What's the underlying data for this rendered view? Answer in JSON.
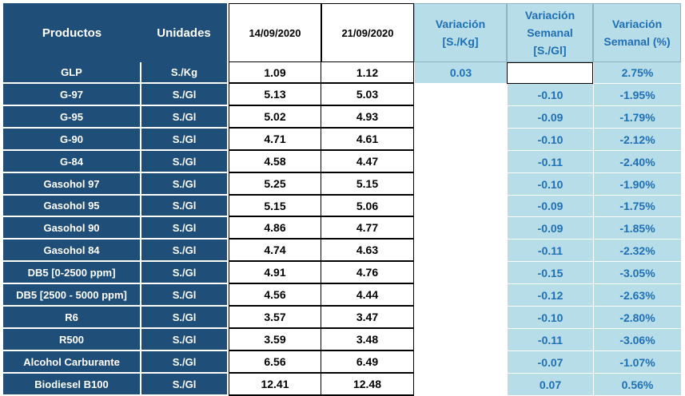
{
  "headers": {
    "productos": "Productos",
    "unidades": "Unidades",
    "date1": "14/09/2020",
    "date2": "21/09/2020",
    "var_kg": "Variación [S./Kg]",
    "var_sem_gl": "Variación Semanal [S./Gl]",
    "var_sem_pct": "Variación Semanal (%)"
  },
  "glp": {
    "product": "GLP",
    "unit": "S./Kg",
    "p1": "1.09",
    "p2": "1.12",
    "var_kg": "0.03",
    "var_pct": "2.75%"
  },
  "rows": [
    {
      "product": "G-97",
      "unit": "S./Gl",
      "p1": "5.13",
      "p2": "5.03",
      "var_gl": "-0.10",
      "var_pct": "-1.95%"
    },
    {
      "product": "G-95",
      "unit": "S./Gl",
      "p1": "5.02",
      "p2": "4.93",
      "var_gl": "-0.09",
      "var_pct": "-1.79%"
    },
    {
      "product": "G-90",
      "unit": "S./Gl",
      "p1": "4.71",
      "p2": "4.61",
      "var_gl": "-0.10",
      "var_pct": "-2.12%"
    },
    {
      "product": "G-84",
      "unit": "S./Gl",
      "p1": "4.58",
      "p2": "4.47",
      "var_gl": "-0.11",
      "var_pct": "-2.40%"
    },
    {
      "product": "Gasohol 97",
      "unit": "S./Gl",
      "p1": "5.25",
      "p2": "5.15",
      "var_gl": "-0.10",
      "var_pct": "-1.90%"
    },
    {
      "product": "Gasohol 95",
      "unit": "S./Gl",
      "p1": "5.15",
      "p2": "5.06",
      "var_gl": "-0.09",
      "var_pct": "-1.75%"
    },
    {
      "product": "Gasohol 90",
      "unit": "S./Gl",
      "p1": "4.86",
      "p2": "4.77",
      "var_gl": "-0.09",
      "var_pct": "-1.85%"
    },
    {
      "product": "Gasohol 84",
      "unit": "S./Gl",
      "p1": "4.74",
      "p2": "4.63",
      "var_gl": "-0.11",
      "var_pct": "-2.32%"
    },
    {
      "product": "DB5 [0-2500 ppm]",
      "unit": "S./Gl",
      "p1": "4.91",
      "p2": "4.76",
      "var_gl": "-0.15",
      "var_pct": "-3.05%"
    },
    {
      "product": "DB5 [2500 - 5000 ppm]",
      "unit": "S./Gl",
      "p1": "4.56",
      "p2": "4.44",
      "var_gl": "-0.12",
      "var_pct": "-2.63%"
    },
    {
      "product": "R6",
      "unit": "S./Gl",
      "p1": "3.57",
      "p2": "3.47",
      "var_gl": "-0.10",
      "var_pct": "-2.80%"
    },
    {
      "product": "R500",
      "unit": "S./Gl",
      "p1": "3.59",
      "p2": "3.48",
      "var_gl": "-0.11",
      "var_pct": "-3.06%"
    },
    {
      "product": "Alcohol Carburante",
      "unit": "S./Gl",
      "p1": "6.56",
      "p2": "6.49",
      "var_gl": "-0.07",
      "var_pct": "-1.07%"
    },
    {
      "product": "Biodiesel B100",
      "unit": "S./Gl",
      "p1": "12.41",
      "p2": "12.48",
      "var_gl": "0.07",
      "var_pct": "0.56%"
    }
  ]
}
